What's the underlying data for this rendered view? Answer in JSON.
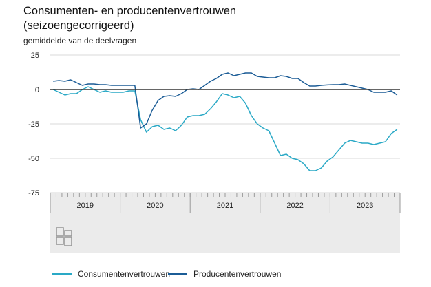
{
  "title": {
    "line1": "Consumenten- en producentenvertrouwen",
    "line2": "(seizoengecorrigeerd)"
  },
  "unit_label": "gemiddelde van de deelvragen",
  "colors": {
    "consument": "#2AA9C6",
    "producent": "#1B5C96",
    "zero_line": "#333333",
    "grid": "#d9d9d9",
    "axis_band": "#ebebeb"
  },
  "logo": "cbs-logo",
  "legend": {
    "consument": "Consumentenvertrouwen",
    "producent": "Producentenvertrouwen"
  },
  "chart_data": {
    "type": "line",
    "x": [
      "2019-01",
      "2019-02",
      "2019-03",
      "2019-04",
      "2019-05",
      "2019-06",
      "2019-07",
      "2019-08",
      "2019-09",
      "2019-10",
      "2019-11",
      "2019-12",
      "2020-01",
      "2020-02",
      "2020-03",
      "2020-04",
      "2020-05",
      "2020-06",
      "2020-07",
      "2020-08",
      "2020-09",
      "2020-10",
      "2020-11",
      "2020-12",
      "2021-01",
      "2021-02",
      "2021-03",
      "2021-04",
      "2021-05",
      "2021-06",
      "2021-07",
      "2021-08",
      "2021-09",
      "2021-10",
      "2021-11",
      "2021-12",
      "2022-01",
      "2022-02",
      "2022-03",
      "2022-04",
      "2022-05",
      "2022-06",
      "2022-07",
      "2022-08",
      "2022-09",
      "2022-10",
      "2022-11",
      "2022-12",
      "2023-01",
      "2023-02",
      "2023-03",
      "2023-04",
      "2023-05",
      "2023-06",
      "2023-07",
      "2023-08",
      "2023-09",
      "2023-10",
      "2023-11",
      "2023-12"
    ],
    "series": [
      {
        "name": "Consumentenvertrouwen",
        "values": [
          0,
          -2,
          -4,
          -3,
          -3,
          0,
          2,
          0,
          -2,
          -1,
          -2,
          -2,
          -2,
          -1,
          -1,
          -22,
          -31,
          -27,
          -26,
          -29,
          -28,
          -30,
          -26,
          -20,
          -19,
          -19,
          -18,
          -14,
          -9,
          -3,
          -4,
          -6,
          -5,
          -10,
          -19,
          -25,
          -28,
          -30,
          -39,
          -48,
          -47,
          -50,
          -51,
          -54,
          -59,
          -59,
          -57,
          -52,
          -49,
          -44,
          -39,
          -37,
          -38,
          -39,
          -39,
          -40,
          -39,
          -38,
          -32,
          -29
        ]
      },
      {
        "name": "Producentenvertrouwen",
        "values": [
          6,
          6.5,
          6,
          7,
          5,
          3,
          4,
          4,
          3.5,
          3.5,
          3,
          3,
          3,
          3,
          3,
          -28,
          -25,
          -15,
          -8,
          -5,
          -4.5,
          -5,
          -3,
          0,
          0.5,
          0,
          3,
          6,
          8,
          11,
          12,
          10,
          11,
          12,
          12,
          9.5,
          9,
          8.5,
          8.5,
          10,
          9.5,
          8,
          8,
          5,
          2.5,
          2.5,
          3,
          3.3,
          3.5,
          3.5,
          4,
          3,
          2,
          1,
          0,
          -2,
          -2,
          -2,
          -1,
          -4
        ]
      }
    ],
    "xlabel": "",
    "ylabel": "",
    "yticks": [
      25,
      0,
      -25,
      -50,
      -75
    ],
    "ylim": [
      -75,
      25
    ],
    "years": [
      "2019",
      "2020",
      "2021",
      "2022",
      "2023"
    ],
    "grid": true
  }
}
